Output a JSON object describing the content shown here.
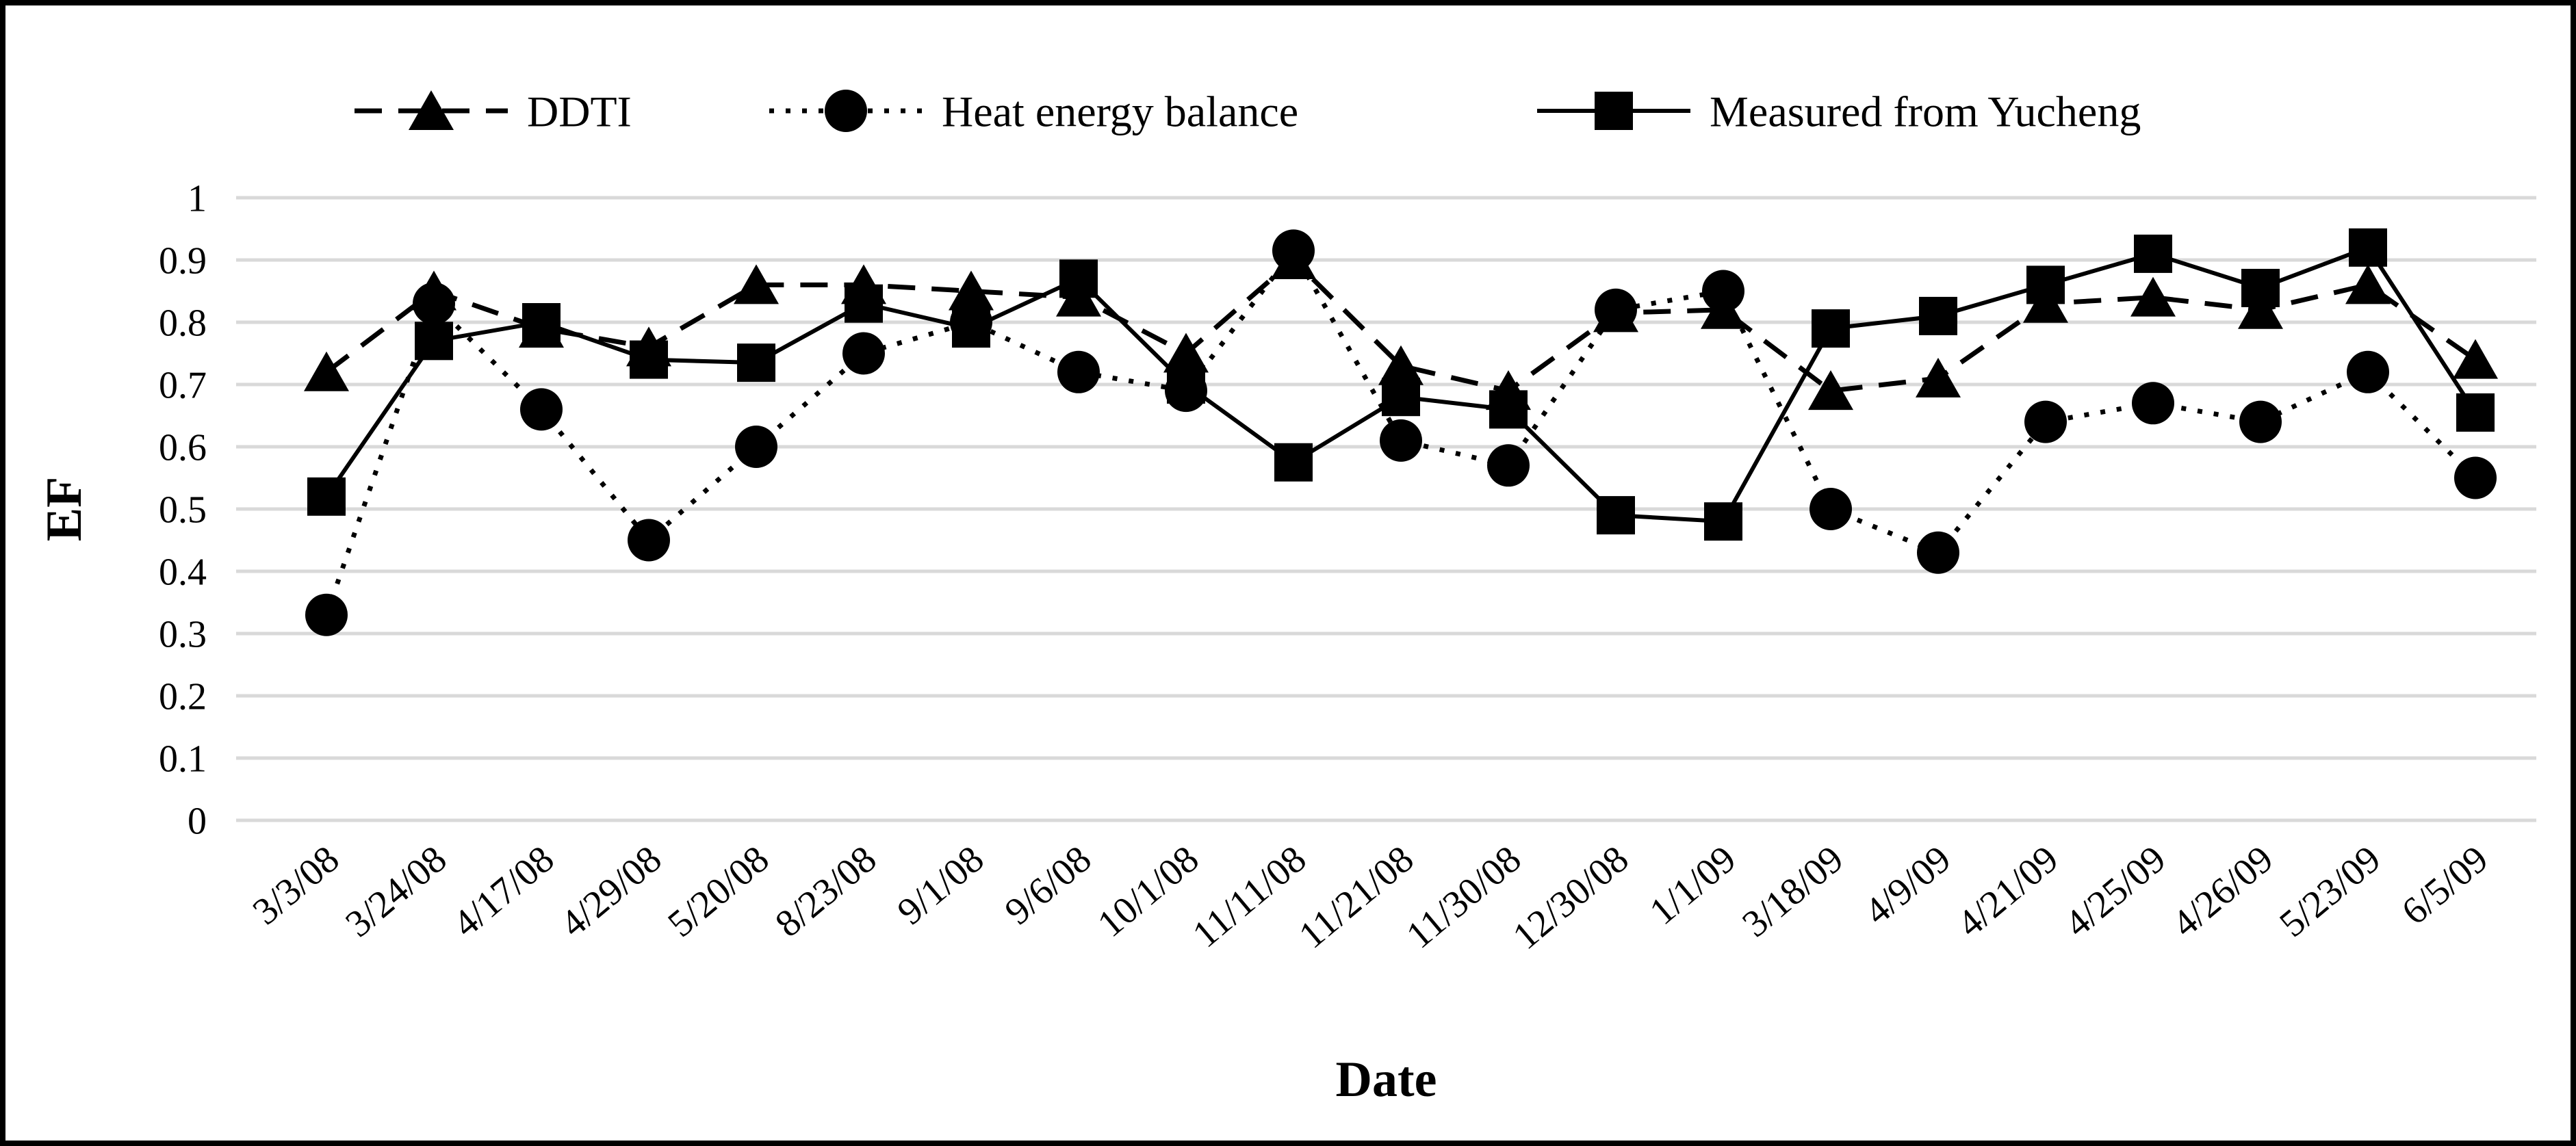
{
  "figure": {
    "background": "#ffffff",
    "border_color": "#000000"
  },
  "chart_data": {
    "type": "line",
    "title": "",
    "xlabel": "Date",
    "ylabel": "EF",
    "ylim": [
      0,
      1
    ],
    "ytick_labels": [
      "0",
      "0.1",
      "0.2",
      "0.3",
      "0.4",
      "0.5",
      "0.6",
      "0.7",
      "0.8",
      "0.9",
      "1"
    ],
    "grid": "horizontal",
    "grid_color": "#d9d9d9",
    "series_color": "#000000",
    "legend_position": "top",
    "categories": [
      "3/3/08",
      "3/24/08",
      "4/17/08",
      "4/29/08",
      "5/20/08",
      "8/23/08",
      "9/1/08",
      "9/6/08",
      "10/1/08",
      "11/11/08",
      "11/21/08",
      "11/30/08",
      "12/30/08",
      "1/1/09",
      "3/18/09",
      "4/9/09",
      "4/21/09",
      "4/25/09",
      "4/26/09",
      "5/23/09",
      "6/5/09"
    ],
    "series": [
      {
        "name": "DDTI",
        "marker": "triangle",
        "line_style": "dashed",
        "values": [
          0.72,
          0.85,
          0.79,
          0.76,
          0.86,
          0.86,
          0.85,
          0.84,
          0.75,
          0.9,
          0.73,
          0.69,
          0.815,
          0.82,
          0.69,
          0.71,
          0.83,
          0.84,
          0.82,
          0.86,
          0.74
        ]
      },
      {
        "name": "Heat energy balance",
        "marker": "circle",
        "line_style": "dotted",
        "values": [
          0.33,
          0.83,
          0.66,
          0.45,
          0.6,
          0.75,
          0.8,
          0.72,
          0.69,
          0.915,
          0.61,
          0.57,
          0.82,
          0.85,
          0.5,
          0.43,
          0.64,
          0.67,
          0.64,
          0.72,
          0.55
        ]
      },
      {
        "name": "Measured from Yucheng",
        "marker": "square",
        "line_style": "solid",
        "values": [
          0.52,
          0.77,
          0.8,
          0.74,
          0.735,
          0.83,
          0.79,
          0.87,
          0.7,
          0.575,
          0.68,
          0.66,
          0.49,
          0.48,
          0.79,
          0.81,
          0.86,
          0.91,
          0.855,
          0.92,
          0.655
        ]
      }
    ]
  }
}
